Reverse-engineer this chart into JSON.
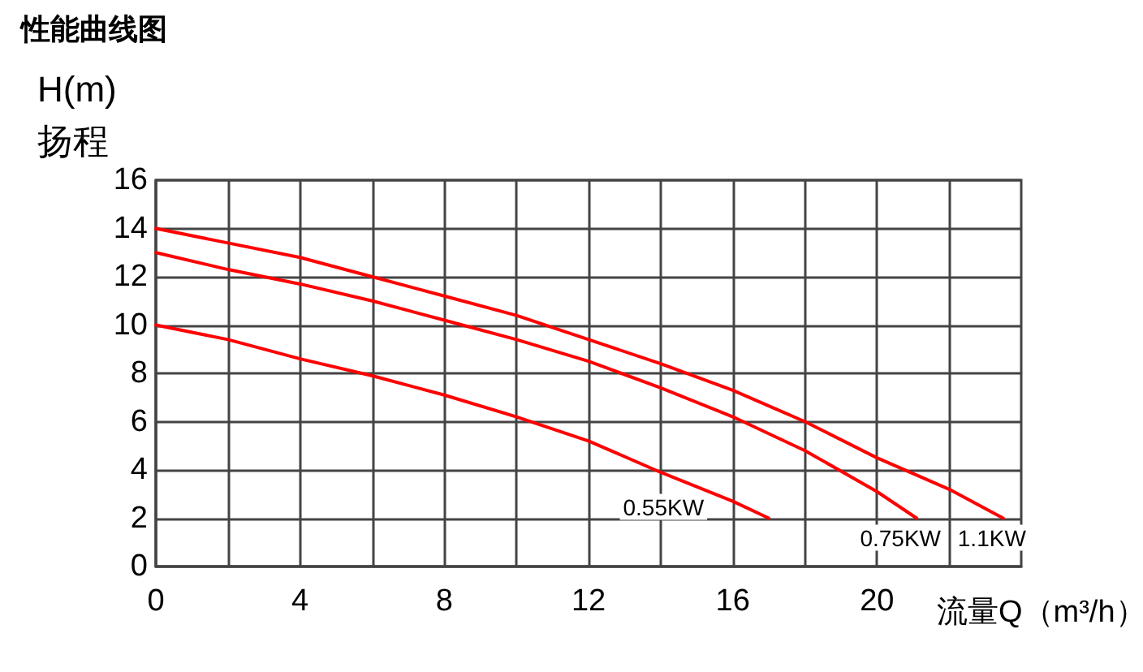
{
  "chart_data": {
    "type": "line",
    "title": "性能曲线图",
    "ylabel": "H(m)\n扬程",
    "xlabel": "流量Q（m³/h）",
    "series": [
      {
        "name": "0.55KW",
        "color": "#ff0000",
        "x": [
          0,
          2,
          4,
          6,
          8,
          10,
          12,
          14,
          16,
          17
        ],
        "values": [
          10,
          9.4,
          8.6,
          7.9,
          7.1,
          6.2,
          5.2,
          3.9,
          2.7,
          2
        ]
      },
      {
        "name": "0.75KW",
        "color": "#ff0000",
        "x": [
          0,
          2,
          4,
          6,
          8,
          10,
          12,
          14,
          16,
          18,
          20,
          21.1
        ],
        "values": [
          13,
          12.3,
          11.7,
          11,
          10.2,
          9.4,
          8.5,
          7.4,
          6.2,
          4.8,
          3.1,
          2
        ]
      },
      {
        "name": "1.1KW",
        "color": "#ff0000",
        "x": [
          0,
          2,
          4,
          6,
          8,
          10,
          12,
          14,
          16,
          18,
          20,
          22,
          23.5
        ],
        "values": [
          14,
          13.4,
          12.8,
          12,
          11.2,
          10.4,
          9.4,
          8.4,
          7.3,
          6,
          4.5,
          3.2,
          2
        ]
      }
    ],
    "xlim": [
      0,
      24
    ],
    "xticks": [
      0,
      {
        "value": 2,
        "label": null
      },
      4,
      {
        "value": 6,
        "label": null
      },
      8,
      {
        "value": 10,
        "label": null
      },
      12,
      {
        "value": 14,
        "label": null
      },
      16,
      {
        "value": 18,
        "label": null
      },
      20,
      {
        "value": 22,
        "label": null
      }
    ],
    "ylim": [
      0,
      16
    ],
    "yticks": [
      0,
      2,
      4,
      6,
      8,
      10,
      12,
      14,
      16
    ],
    "grid": true,
    "marker": "none",
    "line_style": "solid"
  }
}
